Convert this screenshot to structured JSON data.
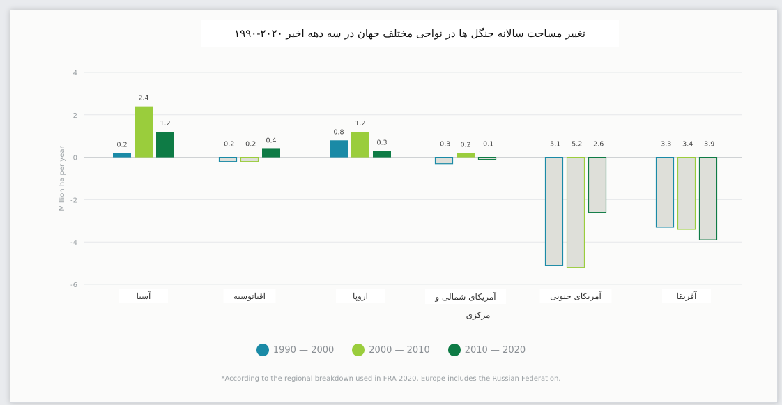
{
  "chart_data": {
    "type": "bar",
    "title": "تغییر مساحت سالانه جنگل ها در نواحی مختلف جهان در سه دهه اخیر ۲۰۲۰-۱۹۹۰",
    "ylabel": "Million ha per year",
    "xlabel": "",
    "ylim": [
      -6,
      4
    ],
    "yticks": [
      "4",
      "2",
      "0",
      "-2",
      "-4",
      "-6"
    ],
    "categories": [
      "آسیا",
      "اقیانوسیه",
      "اروپا",
      "آمریکای شمالی و مرکزی",
      "آمریکای جنوبی",
      "آفریقا"
    ],
    "series": [
      {
        "name": "1990 — 2000",
        "color": "#1a8aa6",
        "values": [
          0.2,
          -0.2,
          0.8,
          -0.3,
          -5.1,
          -3.3
        ],
        "labels": [
          "0.2",
          "-0.2",
          "0.8",
          "-0.3",
          "-5.1",
          "-3.3"
        ]
      },
      {
        "name": "2000 — 2010",
        "color": "#9acd3c",
        "values": [
          2.4,
          -0.2,
          1.2,
          0.2,
          -5.2,
          -3.4
        ],
        "labels": [
          "2.4",
          "-0.2",
          "1.2",
          "0.2",
          "-5.2",
          "-3.4"
        ]
      },
      {
        "name": "2010 — 2020",
        "color": "#0e7b45",
        "values": [
          1.2,
          0.4,
          0.3,
          -0.1,
          -2.6,
          -3.9
        ],
        "labels": [
          "1.2",
          "0.4",
          "0.3",
          "-0.1",
          "-2.6",
          "-3.9"
        ]
      }
    ],
    "negative_fill": "#dedfd9",
    "grid": true,
    "legend_position": "bottom"
  },
  "footnote": "*According to the regional breakdown used in FRA 2020, Europe includes the Russian Federation."
}
